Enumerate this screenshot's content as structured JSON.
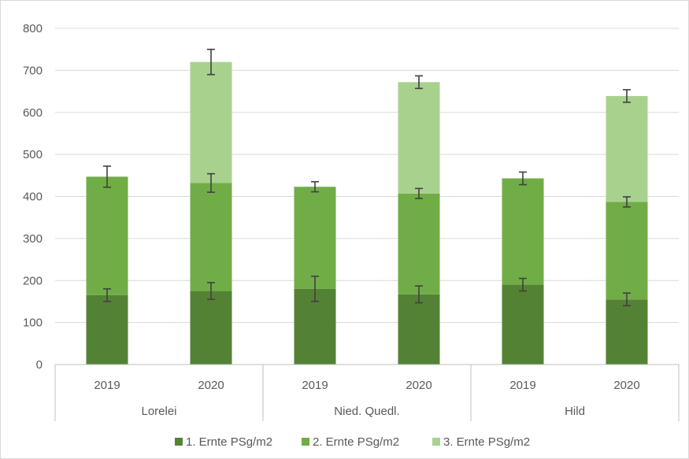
{
  "chart_data": {
    "type": "bar",
    "stacked": true,
    "title": "",
    "xlabel": "",
    "ylabel": "",
    "ylim": [
      0,
      800
    ],
    "yticks": [
      0,
      100,
      200,
      300,
      400,
      500,
      600,
      700,
      800
    ],
    "grid": true,
    "legend_position": "bottom",
    "categories": [
      "2019",
      "2020",
      "2019",
      "2020",
      "2019",
      "2020"
    ],
    "groups": [
      {
        "label": "Lorelei",
        "span": [
          0,
          1
        ]
      },
      {
        "label": "Nied. Quedl.",
        "span": [
          2,
          3
        ]
      },
      {
        "label": "Hild",
        "span": [
          4,
          5
        ]
      }
    ],
    "series": [
      {
        "name": "1. Ernte PSg/m2",
        "color": "#548235",
        "values": [
          165,
          175,
          180,
          167,
          190,
          155
        ],
        "error": [
          15,
          20,
          30,
          20,
          15,
          15
        ]
      },
      {
        "name": "2. Ernte PSg/m2",
        "color": "#70ad47",
        "values": [
          282,
          257,
          243,
          240,
          253,
          232
        ],
        "error": [
          25,
          22,
          12,
          12,
          15,
          12
        ]
      },
      {
        "name": "3. Ernte PSg/m2",
        "color": "#a9d18e",
        "values": [
          0,
          288,
          0,
          265,
          0,
          252
        ],
        "error": [
          0,
          30,
          0,
          15,
          0,
          15
        ]
      }
    ]
  }
}
